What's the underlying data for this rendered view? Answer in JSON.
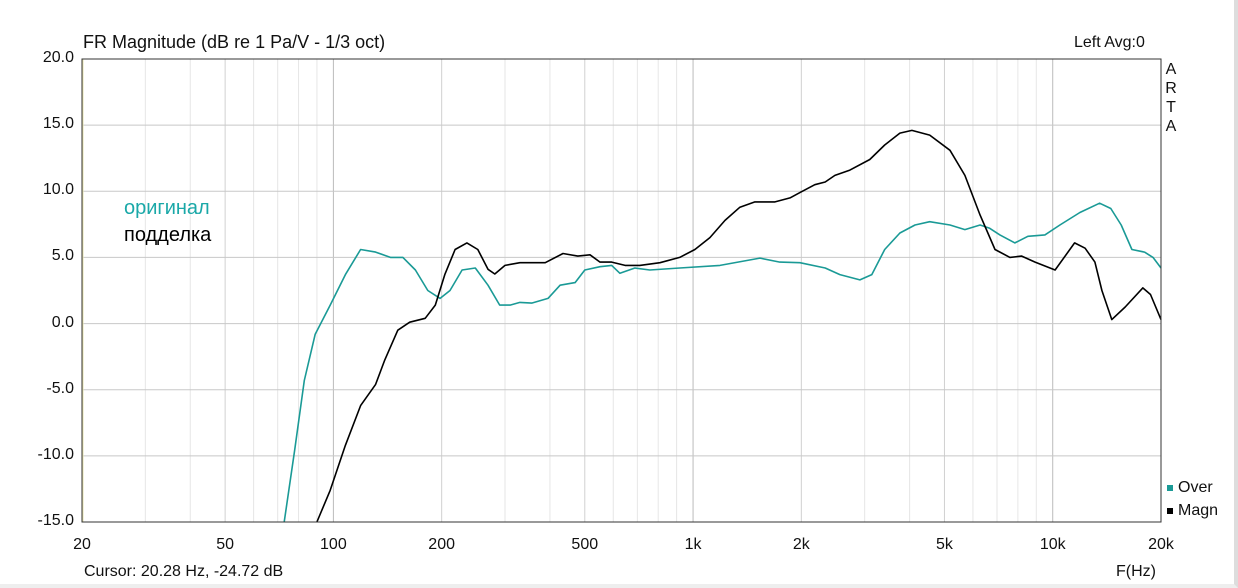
{
  "chart_data": {
    "type": "line",
    "title": "FR Magnitude (dB re 1 Pa/V - 1/3 oct)",
    "channel_info": "Left  Avg:0",
    "watermark": [
      "A",
      "R",
      "T",
      "A"
    ],
    "xlabel": "F(Hz)",
    "ylabel": "",
    "xscale": "log",
    "xlim": [
      20,
      20000
    ],
    "ylim": [
      -15,
      20
    ],
    "x_ticks": [
      20,
      50,
      100,
      200,
      500,
      1000,
      2000,
      5000,
      10000,
      20000
    ],
    "x_tick_labels": [
      "20",
      "50",
      "100",
      "200",
      "500",
      "1k",
      "2k",
      "5k",
      "10k",
      "20k"
    ],
    "y_ticks": [
      20,
      15,
      10,
      5,
      0,
      -5,
      -10,
      -15
    ],
    "y_tick_labels": [
      "20.0",
      "15.0",
      "10.0",
      "5.0",
      "0.0",
      "-5.0",
      "-10.0",
      "-15.0"
    ],
    "grid": true,
    "legend_position": "right-bottom",
    "cursor_readout": "Cursor: 20.28 Hz, -24.72 dB",
    "annotations": [
      {
        "text": "оригинал",
        "color": "#1aa8a8"
      },
      {
        "text": "подделка",
        "color": "#000000"
      }
    ],
    "series": [
      {
        "name": "Over",
        "color": "#1a9a96",
        "x": [
          73,
          78,
          83,
          89,
          98,
          108,
          119,
          131,
          144,
          156,
          169,
          183,
          198,
          211,
          228,
          248,
          269,
          290,
          310,
          330,
          356,
          395,
          427,
          470,
          500,
          551,
          594,
          626,
          689,
          758,
          918,
          1188,
          1534,
          1742,
          1982,
          2330,
          2560,
          2910,
          3140,
          3410,
          3760,
          4140,
          4550,
          5180,
          5700,
          6280,
          6680,
          7130,
          7850,
          8530,
          9510,
          10470,
          11900,
          13500,
          14500,
          15500,
          16600,
          18000,
          19000,
          20000
        ],
        "y": [
          -15,
          -9.6,
          -4.3,
          -0.8,
          1.4,
          3.7,
          5.6,
          5.4,
          5.0,
          5.0,
          4.05,
          2.5,
          1.9,
          2.5,
          4.05,
          4.2,
          2.9,
          1.4,
          1.4,
          1.6,
          1.55,
          1.9,
          2.9,
          3.1,
          4.05,
          4.3,
          4.4,
          3.8,
          4.2,
          4.05,
          4.2,
          4.4,
          4.95,
          4.65,
          4.6,
          4.2,
          3.7,
          3.3,
          3.7,
          5.6,
          6.85,
          7.45,
          7.7,
          7.45,
          7.1,
          7.45,
          7.2,
          6.7,
          6.1,
          6.6,
          6.7,
          7.45,
          8.4,
          9.1,
          8.7,
          7.45,
          5.6,
          5.4,
          5.0,
          4.2
        ]
      },
      {
        "name": "Magn",
        "color": "#000000",
        "x": [
          90,
          98,
          108,
          119,
          131,
          139,
          151,
          163,
          180,
          192,
          204,
          218,
          235,
          252,
          269,
          281,
          300,
          330,
          388,
          435,
          478,
          517,
          551,
          594,
          647,
          711,
          809,
          918,
          1012,
          1114,
          1227,
          1350,
          1486,
          1690,
          1860,
          1982,
          2180,
          2330,
          2480,
          2730,
          3100,
          3410,
          3760,
          4060,
          4550,
          5180,
          5700,
          6280,
          6910,
          7600,
          8200,
          8930,
          10150,
          11500,
          12300,
          13100,
          13700,
          14600,
          15900,
          17800,
          18700,
          20000
        ],
        "y": [
          -15,
          -12.6,
          -9.2,
          -6.2,
          -4.6,
          -2.75,
          -0.5,
          0.1,
          0.4,
          1.4,
          3.7,
          5.6,
          6.1,
          5.6,
          4.1,
          3.75,
          4.4,
          4.6,
          4.6,
          5.3,
          5.1,
          5.2,
          4.65,
          4.65,
          4.4,
          4.4,
          4.6,
          5.0,
          5.6,
          6.5,
          7.8,
          8.8,
          9.2,
          9.2,
          9.5,
          9.9,
          10.5,
          10.7,
          11.2,
          11.6,
          12.4,
          13.5,
          14.4,
          14.6,
          14.25,
          13.1,
          11.2,
          8.2,
          5.6,
          5.0,
          5.1,
          4.65,
          4.05,
          6.1,
          5.7,
          4.65,
          2.5,
          0.3,
          1.25,
          2.7,
          2.2,
          0.3
        ]
      }
    ]
  }
}
